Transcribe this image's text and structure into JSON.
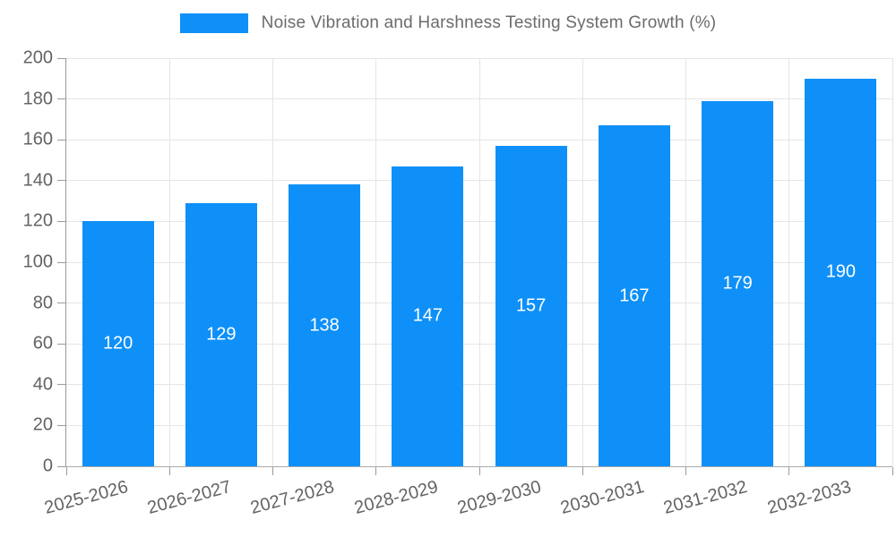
{
  "legend": {
    "label": "Noise Vibration and Harshness Testing System Growth (%)"
  },
  "chart_data": {
    "type": "bar",
    "title": "Noise Vibration and Harshness Testing System Growth (%)",
    "categories": [
      "2025-2026",
      "2026-2027",
      "2027-2028",
      "2028-2029",
      "2029-2030",
      "2030-2031",
      "2031-2032",
      "2032-2033"
    ],
    "values": [
      120,
      129,
      138,
      147,
      157,
      167,
      179,
      190
    ],
    "xlabel": "",
    "ylabel": "",
    "ylim": [
      0,
      200
    ],
    "ytick_step": 20,
    "ytick_labels": [
      "0",
      "20",
      "40",
      "60",
      "80",
      "100",
      "120",
      "140",
      "160",
      "180",
      "200"
    ],
    "grid": true,
    "legend_position": "top",
    "bar_color": "#0e90f8",
    "value_label_color": "#ffffff",
    "colors": {
      "grid": "#e5e5e5",
      "axis": "#9a9a9a",
      "tick_text": "#636363",
      "legend_text": "#6b6b6b",
      "background": "#ffffff"
    }
  }
}
